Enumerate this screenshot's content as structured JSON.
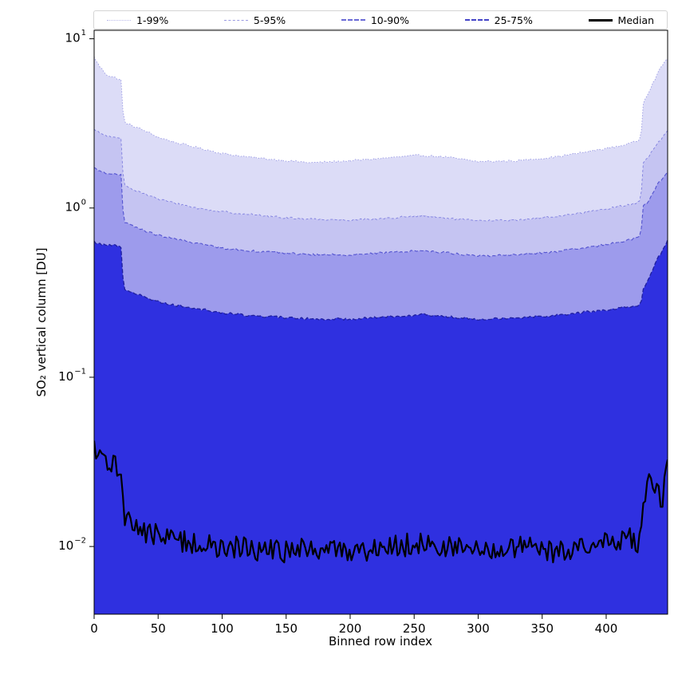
{
  "chart_data": {
    "type": "area",
    "title": "",
    "xlabel": "Binned row index",
    "ylabel": "SO₂ vertical column [DU]",
    "xlim": [
      0,
      448
    ],
    "ylog_lim": [
      -2.4,
      1.05
    ],
    "grid": false,
    "legend_position": "top",
    "x_ticks": [
      0,
      50,
      100,
      150,
      200,
      250,
      300,
      350,
      400
    ],
    "y_ticks": [
      {
        "value": 10,
        "base": "10",
        "exp": "1"
      },
      {
        "value": 1,
        "base": "10",
        "exp": "0"
      },
      {
        "value": 0.1,
        "base": "10",
        "exp": "−1"
      },
      {
        "value": 0.01,
        "base": "10",
        "exp": "−2"
      }
    ],
    "legend": [
      {
        "label": "1-99%",
        "line_color": "#b9b9ea",
        "line_style": "dotted",
        "line_weight": 1
      },
      {
        "label": "5-95%",
        "line_color": "#9a9ae2",
        "line_style": "dashed",
        "line_weight": 1
      },
      {
        "label": "10-90%",
        "line_color": "#6a6ad6",
        "line_style": "dashed",
        "line_weight": 2
      },
      {
        "label": "25-75%",
        "line_color": "#4444c8",
        "line_style": "dashed",
        "line_weight": 2
      },
      {
        "label": "Median",
        "line_color": "#000000",
        "line_style": "solid",
        "line_weight": 3
      }
    ],
    "x": [
      0,
      4,
      10,
      16,
      21,
      23,
      27,
      33,
      40,
      50,
      65,
      80,
      100,
      120,
      145,
      170,
      200,
      230,
      255,
      275,
      300,
      330,
      360,
      390,
      410,
      422,
      427,
      429,
      434,
      440,
      444,
      448
    ],
    "series": [
      {
        "name": "1-99% upper",
        "fill": "#dcdcf7",
        "edge": "#9b9be4",
        "dash": [
          1.5,
          2
        ],
        "line_width": 0.9,
        "noise": 0.006,
        "values": [
          7.8,
          6.9,
          6.1,
          5.9,
          5.7,
          3.25,
          3.12,
          3.0,
          2.85,
          2.62,
          2.42,
          2.28,
          2.1,
          2.0,
          1.92,
          1.85,
          1.9,
          1.98,
          2.05,
          2.0,
          1.88,
          1.9,
          2.0,
          2.18,
          2.32,
          2.45,
          2.55,
          4.2,
          5.0,
          6.2,
          7.0,
          7.7
        ]
      },
      {
        "name": "5-95% upper",
        "fill": "#c5c4f2",
        "edge": "#7f7fdf",
        "dash": [
          3,
          2.5
        ],
        "line_width": 0.9,
        "noise": 0.006,
        "values": [
          2.9,
          2.78,
          2.66,
          2.6,
          2.55,
          1.38,
          1.33,
          1.27,
          1.21,
          1.13,
          1.06,
          1.0,
          0.95,
          0.92,
          0.88,
          0.86,
          0.85,
          0.87,
          0.9,
          0.87,
          0.84,
          0.85,
          0.89,
          0.96,
          1.02,
          1.06,
          1.1,
          1.85,
          2.05,
          2.4,
          2.6,
          2.85
        ]
      },
      {
        "name": "10-90% upper",
        "fill": "#9d9bec",
        "edge": "#5353d0",
        "dash": [
          4.5,
          2.5
        ],
        "line_width": 1.1,
        "noise": 0.006,
        "values": [
          1.72,
          1.66,
          1.61,
          1.58,
          1.56,
          0.83,
          0.8,
          0.77,
          0.73,
          0.69,
          0.65,
          0.62,
          0.58,
          0.56,
          0.545,
          0.53,
          0.53,
          0.545,
          0.56,
          0.545,
          0.52,
          0.53,
          0.55,
          0.59,
          0.63,
          0.66,
          0.68,
          1.02,
          1.12,
          1.38,
          1.5,
          1.66
        ]
      },
      {
        "name": "25-75% upper",
        "fill": "#2f30e0",
        "edge": "#1f1f9e",
        "dash": [
          5,
          2.5
        ],
        "line_width": 1.3,
        "noise": 0.007,
        "values": [
          0.63,
          0.615,
          0.605,
          0.6,
          0.59,
          0.335,
          0.325,
          0.312,
          0.296,
          0.28,
          0.265,
          0.255,
          0.24,
          0.232,
          0.226,
          0.221,
          0.221,
          0.228,
          0.235,
          0.228,
          0.221,
          0.225,
          0.232,
          0.245,
          0.255,
          0.262,
          0.268,
          0.335,
          0.39,
          0.5,
          0.56,
          0.645
        ]
      },
      {
        "name": "Median",
        "fill": null,
        "edge": "#000000",
        "dash": [],
        "line_width": 2.2,
        "noise": 0.07,
        "values": [
          0.036,
          0.033,
          0.031,
          0.03,
          0.029,
          0.016,
          0.0145,
          0.0132,
          0.0122,
          0.0115,
          0.011,
          0.0105,
          0.0096,
          0.0099,
          0.0092,
          0.0097,
          0.0094,
          0.01,
          0.0105,
          0.0099,
          0.0094,
          0.0098,
          0.0093,
          0.0102,
          0.0108,
          0.0112,
          0.0104,
          0.017,
          0.024,
          0.0205,
          0.0185,
          0.035
        ]
      }
    ]
  }
}
